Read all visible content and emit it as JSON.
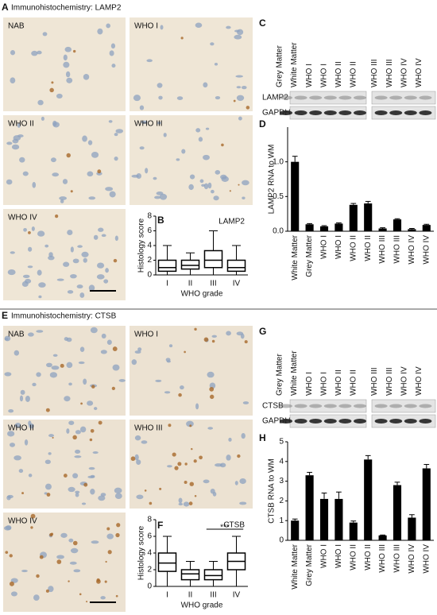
{
  "figure": {
    "sections": [
      {
        "letter": "A",
        "title": "Immunohistochemistry: LAMP2",
        "tiles": [
          "NAB",
          "WHO I",
          "WHO II",
          "WHO III",
          "WHO IV"
        ]
      },
      {
        "letter": "E",
        "title": "Immunohistochemistry: CTSB",
        "tiles": [
          "NAB",
          "WHO I",
          "WHO II",
          "WHO III",
          "WHO IV"
        ]
      }
    ],
    "blots": [
      {
        "letter": "C",
        "lanes": [
          "Grey Matter",
          "White Matter",
          "WHO I",
          "WHO I",
          "WHO II",
          "WHO II",
          "WHO III",
          "WHO III",
          "WHO IV",
          "WHO IV"
        ],
        "rows": [
          "LAMP2",
          "GAPDH"
        ]
      },
      {
        "letter": "G",
        "lanes": [
          "Grey Matter",
          "White Matter",
          "WHO I",
          "WHO I",
          "WHO II",
          "WHO II",
          "WHO III",
          "WHO III",
          "WHO IV",
          "WHO IV"
        ],
        "rows": [
          "CTSB",
          "GAPDH"
        ]
      }
    ]
  },
  "chart_data": [
    {
      "type": "box",
      "letter": "B",
      "title": "LAMP2",
      "xlabel": "WHO grade",
      "ylabel": "Histology score",
      "categories": [
        "I",
        "II",
        "III",
        "IV"
      ],
      "min": [
        0,
        0,
        0,
        0
      ],
      "q1": [
        0.5,
        0.8,
        1,
        0.5
      ],
      "median": [
        1,
        1.3,
        2,
        1
      ],
      "q3": [
        2,
        2,
        3.3,
        2
      ],
      "max": [
        4,
        3,
        6,
        4
      ],
      "ylim": [
        0,
        8
      ],
      "yticks": [
        0,
        2,
        4,
        6,
        8
      ]
    },
    {
      "type": "bar",
      "letter": "D",
      "ylabel": "LAMP2 RNA to WM",
      "categories": [
        "White Matter",
        "Grey Matter",
        "WHO I",
        "WHO I",
        "WHO II",
        "WHO II",
        "WHO III",
        "WHO III",
        "WHO IV",
        "WHO IV"
      ],
      "values": [
        1.0,
        0.1,
        0.07,
        0.11,
        0.38,
        0.4,
        0.04,
        0.17,
        0.03,
        0.09
      ],
      "errors": [
        0.08,
        0.01,
        0.01,
        0.01,
        0.02,
        0.03,
        0.01,
        0.01,
        0.01,
        0.01
      ],
      "color": "#000000",
      "ylim": [
        0,
        1.5
      ],
      "yticks": [
        {
          "value": 0,
          "label": "0.0"
        },
        {
          "value": 0.5,
          "label": "0.5"
        },
        {
          "value": 1,
          "label": "1.0"
        }
      ]
    },
    {
      "type": "box",
      "letter": "F",
      "title": "CTSB",
      "annotation": "***",
      "xlabel": "WHO grade",
      "ylabel": "Histology score",
      "categories": [
        "I",
        "II",
        "III",
        "IV"
      ],
      "min": [
        0,
        0,
        0,
        0
      ],
      "q1": [
        1.8,
        0.8,
        0.8,
        2
      ],
      "median": [
        2.8,
        1.5,
        1.3,
        3
      ],
      "q3": [
        4,
        2,
        2,
        4
      ],
      "max": [
        6,
        3,
        3,
        6
      ],
      "ylim": [
        0,
        8
      ],
      "yticks": [
        0,
        2,
        4,
        6,
        8
      ]
    },
    {
      "type": "bar",
      "letter": "H",
      "ylabel": "CTSB RNA to WM",
      "categories": [
        "White Matter",
        "Grey Matter",
        "WHO I",
        "WHO I",
        "WHO II",
        "WHO II",
        "WHO III",
        "WHO III",
        "WHO IV",
        "WHO IV"
      ],
      "values": [
        1.0,
        3.3,
        2.1,
        2.1,
        0.9,
        4.1,
        0.25,
        2.8,
        1.15,
        3.65
      ],
      "errors": [
        0.08,
        0.15,
        0.3,
        0.35,
        0.08,
        0.2,
        0.02,
        0.15,
        0.15,
        0.2
      ],
      "color": "#000000",
      "ylim": [
        0,
        5
      ],
      "yticks": [
        0,
        1,
        2,
        3,
        4,
        5
      ]
    }
  ]
}
